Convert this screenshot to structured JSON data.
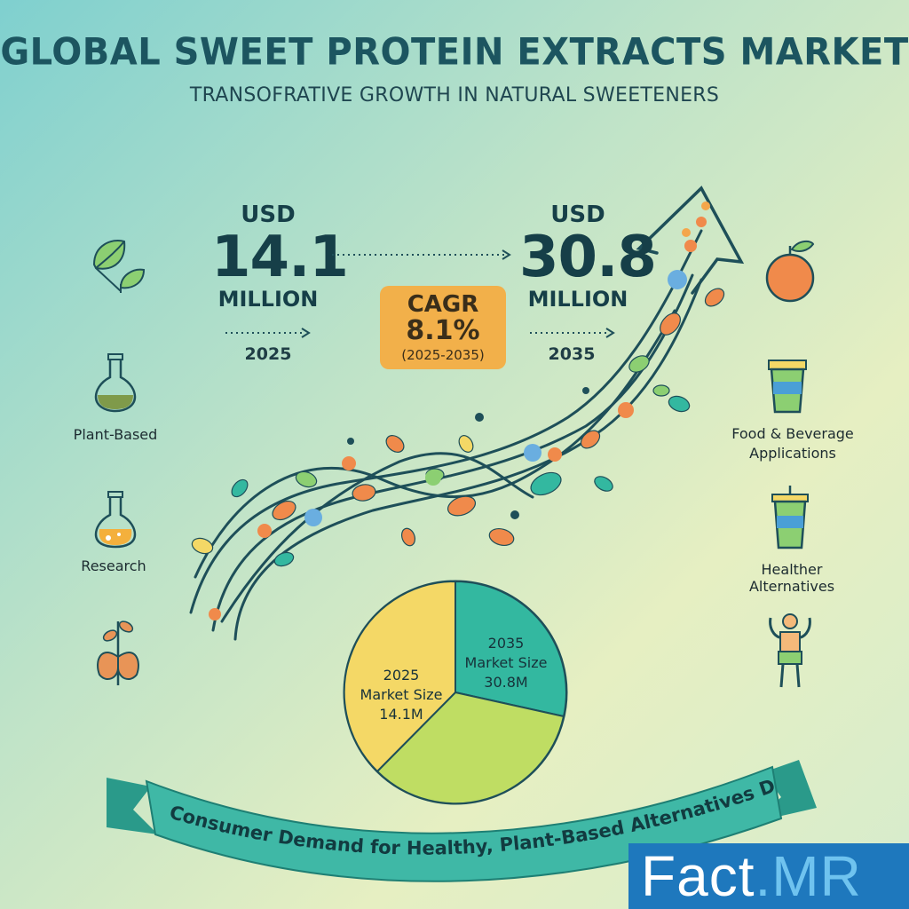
{
  "header": {
    "title": "GLOBAL SWEET PROTEIN EXTRACTS MARKET",
    "subtitle": "TRANSOFRATIVE GROWTH IN NATURAL SWEETENERS"
  },
  "stats": {
    "start": {
      "currency": "USD",
      "value": "14.1",
      "unit": "MILLION",
      "year": "2025"
    },
    "end": {
      "currency": "USD",
      "value": "30.8",
      "unit": "MILLION",
      "year": "2035"
    },
    "cagr": {
      "label": "CAGR",
      "value": "8.1%",
      "period": "(2025-2035)"
    }
  },
  "left_icons": [
    {
      "name": "leaf-icon",
      "label": ""
    },
    {
      "name": "flask-icon",
      "label": "Plant-Based"
    },
    {
      "name": "research-flask-icon",
      "label": "Research"
    },
    {
      "name": "plant-icon",
      "label": ""
    }
  ],
  "right_icons": [
    {
      "name": "fruit-icon",
      "label": ""
    },
    {
      "name": "cup-icon",
      "label": "Food & Beverage\nApplications"
    },
    {
      "name": "drink-icon",
      "label": "Healther Alternatives"
    },
    {
      "name": "strong-person-icon",
      "label": ""
    }
  ],
  "pie": {
    "slice_2025": {
      "line1": "2025",
      "line2": "Market Size",
      "line3": "14.1M"
    },
    "slice_2035": {
      "line1": "2035",
      "line2": "Market Size",
      "line3": "30.8M"
    }
  },
  "banner": {
    "text": "Consumer Demand for Healthy, Plant-Based Alternatives Drives Expansion"
  },
  "logo": {
    "part1": "Fact",
    "part2": ".MR"
  },
  "colors": {
    "title": "#1c5560",
    "cagr_box": "#f2b04a",
    "banner": "#3fb8a6",
    "pie_yellow": "#f4d866",
    "pie_teal": "#33b8a0",
    "pie_green": "#bfdd63",
    "logo_bg": "#1e78bd"
  }
}
